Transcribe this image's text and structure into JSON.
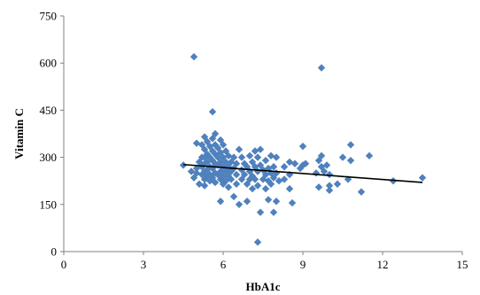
{
  "chart_data": {
    "type": "scatter",
    "xlabel": "HbA1c",
    "ylabel": "Vitamin C",
    "xlim": [
      0,
      15
    ],
    "ylim": [
      0,
      750
    ],
    "x_ticks": [
      "0",
      "3",
      "6",
      "9",
      "12",
      "15"
    ],
    "y_ticks": [
      "0",
      "150",
      "300",
      "450",
      "600",
      "750"
    ],
    "grid": false,
    "legend": "none",
    "colors": {
      "marker": "#4f81bd",
      "trendline": "#000000",
      "axis": "#808080"
    },
    "trendline": {
      "x": [
        4.5,
        13.5
      ],
      "y": [
        277,
        220
      ]
    },
    "points": [
      [
        4.5,
        275
      ],
      [
        4.8,
        255
      ],
      [
        4.9,
        235
      ],
      [
        4.9,
        620
      ],
      [
        5.0,
        345
      ],
      [
        5.0,
        265
      ],
      [
        5.0,
        250
      ],
      [
        5.1,
        285
      ],
      [
        5.1,
        215
      ],
      [
        5.2,
        340
      ],
      [
        5.2,
        300
      ],
      [
        5.2,
        270
      ],
      [
        5.2,
        245
      ],
      [
        5.3,
        365
      ],
      [
        5.3,
        325
      ],
      [
        5.3,
        300
      ],
      [
        5.3,
        280
      ],
      [
        5.3,
        255
      ],
      [
        5.3,
        230
      ],
      [
        5.3,
        210
      ],
      [
        5.4,
        350
      ],
      [
        5.4,
        310
      ],
      [
        5.4,
        285
      ],
      [
        5.4,
        260
      ],
      [
        5.4,
        240
      ],
      [
        5.5,
        335
      ],
      [
        5.5,
        300
      ],
      [
        5.5,
        270
      ],
      [
        5.5,
        245
      ],
      [
        5.5,
        225
      ],
      [
        5.6,
        445
      ],
      [
        5.6,
        360
      ],
      [
        5.6,
        320
      ],
      [
        5.6,
        290
      ],
      [
        5.6,
        265
      ],
      [
        5.6,
        235
      ],
      [
        5.7,
        375
      ],
      [
        5.7,
        340
      ],
      [
        5.7,
        310
      ],
      [
        5.7,
        280
      ],
      [
        5.7,
        250
      ],
      [
        5.7,
        220
      ],
      [
        5.8,
        330
      ],
      [
        5.8,
        300
      ],
      [
        5.8,
        275
      ],
      [
        5.8,
        245
      ],
      [
        5.9,
        355
      ],
      [
        5.9,
        315
      ],
      [
        5.9,
        285
      ],
      [
        5.9,
        255
      ],
      [
        5.9,
        230
      ],
      [
        6.0,
        340
      ],
      [
        6.0,
        300
      ],
      [
        6.0,
        270
      ],
      [
        6.0,
        240
      ],
      [
        6.0,
        215
      ],
      [
        5.9,
        160
      ],
      [
        6.1,
        320
      ],
      [
        6.1,
        285
      ],
      [
        6.1,
        255
      ],
      [
        6.1,
        225
      ],
      [
        6.2,
        305
      ],
      [
        6.2,
        270
      ],
      [
        6.2,
        240
      ],
      [
        6.2,
        205
      ],
      [
        6.3,
        285
      ],
      [
        6.3,
        255
      ],
      [
        6.3,
        230
      ],
      [
        6.4,
        300
      ],
      [
        6.4,
        265
      ],
      [
        6.4,
        175
      ],
      [
        6.5,
        280
      ],
      [
        6.5,
        245
      ],
      [
        6.5,
        215
      ],
      [
        6.6,
        325
      ],
      [
        6.6,
        150
      ],
      [
        6.7,
        300
      ],
      [
        6.7,
        260
      ],
      [
        6.7,
        230
      ],
      [
        6.8,
        280
      ],
      [
        6.8,
        245
      ],
      [
        6.9,
        270
      ],
      [
        6.9,
        215
      ],
      [
        6.9,
        160
      ],
      [
        7.0,
        305
      ],
      [
        7.0,
        255
      ],
      [
        7.0,
        230
      ],
      [
        7.1,
        285
      ],
      [
        7.1,
        240
      ],
      [
        7.1,
        200
      ],
      [
        7.2,
        320
      ],
      [
        7.2,
        270
      ],
      [
        7.2,
        230
      ],
      [
        7.3,
        30
      ],
      [
        7.3,
        300
      ],
      [
        7.3,
        255
      ],
      [
        7.3,
        210
      ],
      [
        7.4,
        325
      ],
      [
        7.4,
        275
      ],
      [
        7.4,
        125
      ],
      [
        7.5,
        260
      ],
      [
        7.5,
        230
      ],
      [
        7.6,
        290
      ],
      [
        7.6,
        245
      ],
      [
        7.6,
        200
      ],
      [
        7.7,
        265
      ],
      [
        7.7,
        225
      ],
      [
        7.7,
        165
      ],
      [
        7.8,
        305
      ],
      [
        7.8,
        250
      ],
      [
        7.8,
        215
      ],
      [
        7.9,
        270
      ],
      [
        7.9,
        235
      ],
      [
        7.9,
        125
      ],
      [
        8.0,
        300
      ],
      [
        8.0,
        250
      ],
      [
        8.0,
        160
      ],
      [
        8.1,
        225
      ],
      [
        8.3,
        270
      ],
      [
        8.3,
        230
      ],
      [
        8.5,
        285
      ],
      [
        8.5,
        245
      ],
      [
        8.5,
        200
      ],
      [
        8.6,
        155
      ],
      [
        8.7,
        280
      ],
      [
        8.9,
        265
      ],
      [
        9.0,
        335
      ],
      [
        9.0,
        275
      ],
      [
        9.1,
        280
      ],
      [
        9.5,
        250
      ],
      [
        9.6,
        290
      ],
      [
        9.6,
        205
      ],
      [
        9.7,
        585
      ],
      [
        9.7,
        305
      ],
      [
        9.7,
        270
      ],
      [
        9.8,
        255
      ],
      [
        9.9,
        275
      ],
      [
        10.0,
        245
      ],
      [
        10.0,
        210
      ],
      [
        10.0,
        195
      ],
      [
        10.3,
        215
      ],
      [
        10.5,
        300
      ],
      [
        10.7,
        230
      ],
      [
        10.8,
        340
      ],
      [
        10.8,
        290
      ],
      [
        11.2,
        190
      ],
      [
        11.5,
        305
      ],
      [
        12.4,
        225
      ],
      [
        13.5,
        235
      ]
    ]
  }
}
